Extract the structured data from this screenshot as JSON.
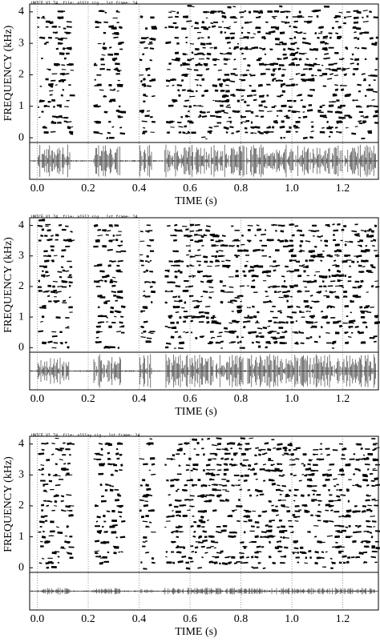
{
  "chart_data": [
    {
      "type": "spectrogram",
      "header": "UNICE V1.74, file: a1S1t.sig , 1st frame: 24",
      "ylabel": "FREQUENCY (kHz)",
      "xlabel": "TIME (s)",
      "xlim": [
        -0.03,
        1.34
      ],
      "ylim": [
        -0.15,
        4.25
      ],
      "xticks": [
        {
          "value": 0,
          "label": "0.0"
        },
        0.2,
        0.4,
        0.6,
        0.8,
        {
          "value": 1,
          "label": "1.0"
        },
        1.2
      ],
      "yticks": [
        0,
        1,
        2,
        3,
        4
      ]
    },
    {
      "type": "spectrogram",
      "header": "UNICE V1.74, file: a1S12.sig , 1st frame: 24",
      "ylabel": "FREQUENCY (kHz)",
      "xlabel": "TIME (s)",
      "xlim": [
        -0.03,
        1.34
      ],
      "ylim": [
        -0.15,
        4.25
      ],
      "xticks": [
        {
          "value": 0,
          "label": "0.0"
        },
        0.2,
        0.4,
        0.6,
        0.8,
        {
          "value": 1,
          "label": "1.0"
        },
        1.2
      ],
      "yticks": [
        0,
        1,
        2,
        3,
        4
      ]
    },
    {
      "type": "spectrogram",
      "header": "UNICE V1.74, file: a1S1ay.sig , 1st frame: 24",
      "ylabel": "FREQUENCY (kHz)",
      "xlabel": "TIME (s)",
      "xlim": [
        -0.03,
        1.34
      ],
      "ylim": [
        -0.15,
        4.25
      ],
      "xticks": [
        {
          "value": 0,
          "label": "0.0"
        },
        0.2,
        0.4,
        0.6,
        0.8,
        {
          "value": 1,
          "label": "1.0"
        },
        1.2
      ],
      "yticks": [
        0,
        1,
        2,
        3,
        4
      ]
    }
  ]
}
